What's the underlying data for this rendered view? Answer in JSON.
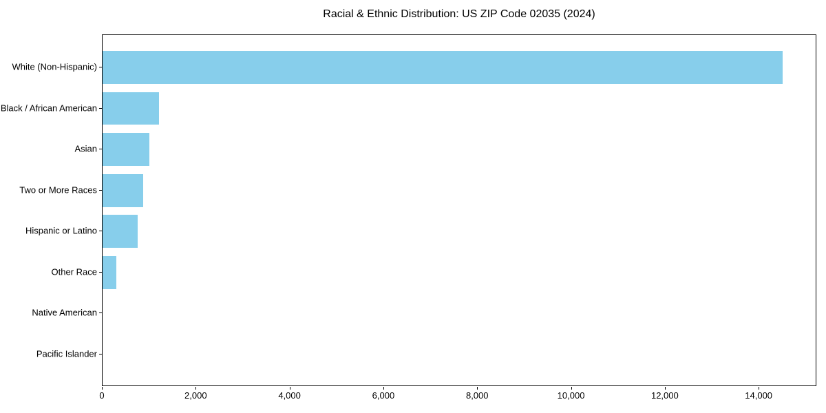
{
  "title": "Racial & Ethnic Distribution: US ZIP Code 02035 (2024)",
  "colors": {
    "bar": "#87CEEB",
    "spine": "#000000",
    "text": "#000000",
    "background": "#ffffff"
  },
  "chart_data": {
    "type": "bar",
    "orientation": "horizontal",
    "title": "Racial & Ethnic Distribution: US ZIP Code 02035 (2024)",
    "xlabel": "",
    "ylabel": "",
    "categories": [
      "White (Non-Hispanic)",
      "Black / African American",
      "Asian",
      "Two or More Races",
      "Hispanic or Latino",
      "Other Race",
      "Native American",
      "Pacific Islander"
    ],
    "values": [
      14500,
      1200,
      1000,
      870,
      750,
      300,
      0,
      0
    ],
    "xlim": [
      0,
      15230
    ],
    "xticks": [
      0,
      2000,
      4000,
      6000,
      8000,
      10000,
      12000,
      14000
    ],
    "xtick_labels": [
      "0",
      "2,000",
      "4,000",
      "6,000",
      "8,000",
      "10,000",
      "12,000",
      "14,000"
    ],
    "bar_color": "#87CEEB",
    "grid": false,
    "legend": null
  }
}
